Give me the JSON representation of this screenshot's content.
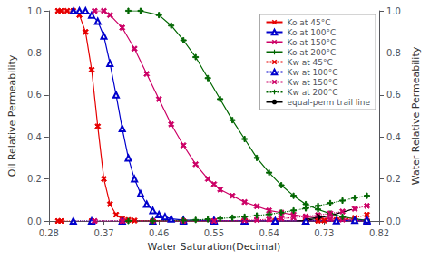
{
  "chart_data": {
    "type": "line",
    "xlabel": "Water Saturation(Decimal)",
    "ylabel": "Oil Relative Permeability",
    "y2label": "Water Relative Permeability",
    "xlim": [
      0.28,
      0.82
    ],
    "ylim": [
      0.0,
      1.0
    ],
    "y2lim": [
      0.0,
      1.0
    ],
    "xticks": [
      0.28,
      0.37,
      0.46,
      0.55,
      0.64,
      0.73,
      0.82
    ],
    "yticks": [
      {
        "value": 0.0,
        "label": "0.0"
      },
      0.2,
      0.4,
      0.6,
      0.8,
      {
        "value": 1.0,
        "label": "1.0"
      }
    ],
    "y2ticks": [
      {
        "value": 0.0,
        "label": "0.0"
      },
      0.2,
      0.4,
      0.6,
      0.8,
      {
        "value": 1.0,
        "label": "1.0"
      }
    ],
    "grid": false,
    "legend": "upper right",
    "series": [
      {
        "name": "Ko at 45°C",
        "color": "#e60000",
        "marker": "x",
        "line_style": "solid",
        "x": [
          0.295,
          0.3,
          0.31,
          0.32,
          0.33,
          0.34,
          0.35,
          0.36,
          0.37,
          0.38,
          0.39,
          0.4,
          0.41,
          0.42,
          0.5,
          0.6,
          0.7,
          0.8
        ],
        "values": [
          1.0,
          1.0,
          1.0,
          1.0,
          0.98,
          0.9,
          0.72,
          0.45,
          0.2,
          0.08,
          0.03,
          0.01,
          0.005,
          0.002,
          0.0,
          0.0,
          0.0,
          0.0
        ]
      },
      {
        "name": "Ko at 100°C",
        "color": "#0000cc",
        "marker": "triangle",
        "line_style": "solid",
        "x": [
          0.32,
          0.33,
          0.34,
          0.35,
          0.36,
          0.37,
          0.38,
          0.39,
          0.4,
          0.41,
          0.42,
          0.43,
          0.44,
          0.45,
          0.46,
          0.47,
          0.48,
          0.5,
          0.55,
          0.6,
          0.65,
          0.7,
          0.8
        ],
        "values": [
          1.0,
          1.0,
          1.0,
          0.98,
          0.95,
          0.88,
          0.75,
          0.6,
          0.44,
          0.3,
          0.2,
          0.13,
          0.08,
          0.05,
          0.03,
          0.02,
          0.01,
          0.005,
          0.002,
          0.001,
          0.0,
          0.0,
          0.0
        ]
      },
      {
        "name": "Ko at 150°C",
        "color": "#cc0066",
        "marker": "x",
        "line_style": "solid",
        "x": [
          0.355,
          0.37,
          0.38,
          0.4,
          0.42,
          0.44,
          0.46,
          0.48,
          0.5,
          0.52,
          0.54,
          0.55,
          0.56,
          0.58,
          0.6,
          0.62,
          0.64,
          0.66,
          0.68,
          0.7,
          0.72,
          0.74,
          0.76,
          0.78,
          0.8
        ],
        "values": [
          1.0,
          1.0,
          0.98,
          0.92,
          0.82,
          0.7,
          0.58,
          0.46,
          0.36,
          0.27,
          0.2,
          0.175,
          0.15,
          0.12,
          0.09,
          0.07,
          0.05,
          0.04,
          0.03,
          0.02,
          0.015,
          0.01,
          0.007,
          0.004,
          0.001
        ]
      },
      {
        "name": "Ko at 200°C",
        "color": "#006600",
        "marker": "plus",
        "line_style": "solid",
        "x": [
          0.41,
          0.43,
          0.46,
          0.48,
          0.5,
          0.52,
          0.54,
          0.56,
          0.58,
          0.6,
          0.62,
          0.64,
          0.66,
          0.68,
          0.7,
          0.72,
          0.74,
          0.76,
          0.78,
          0.8
        ],
        "values": [
          1.0,
          1.0,
          0.98,
          0.93,
          0.86,
          0.78,
          0.68,
          0.58,
          0.48,
          0.39,
          0.3,
          0.23,
          0.17,
          0.12,
          0.08,
          0.055,
          0.035,
          0.02,
          0.01,
          0.003
        ]
      },
      {
        "name": "Kw at 45°C",
        "color": "#e60000",
        "marker": "x",
        "line_style": "dotted",
        "axis": "y2",
        "x": [
          0.295,
          0.3,
          0.35,
          0.4,
          0.45,
          0.5,
          0.55,
          0.6,
          0.65,
          0.7,
          0.72,
          0.73,
          0.75,
          0.78,
          0.8
        ],
        "values": [
          0.0,
          0.0,
          0.0,
          0.0,
          0.0,
          0.0,
          0.0,
          0.0,
          0.0,
          0.0,
          0.001,
          0.002,
          0.005,
          0.015,
          0.03
        ]
      },
      {
        "name": "Kw at 100°C",
        "color": "#0000cc",
        "marker": "triangle",
        "line_style": "dotted",
        "axis": "y2",
        "x": [
          0.32,
          0.35,
          0.4,
          0.45,
          0.5,
          0.55,
          0.6,
          0.65,
          0.7,
          0.75,
          0.78,
          0.8
        ],
        "values": [
          0.0,
          0.0,
          0.0,
          0.0,
          0.0,
          0.0,
          0.0,
          0.0,
          0.0,
          0.001,
          0.003,
          0.005
        ]
      },
      {
        "name": "Kw at 150°C",
        "color": "#cc0066",
        "marker": "x",
        "line_style": "dotted",
        "axis": "y2",
        "x": [
          0.355,
          0.4,
          0.45,
          0.5,
          0.55,
          0.6,
          0.62,
          0.64,
          0.66,
          0.68,
          0.7,
          0.72,
          0.74,
          0.76,
          0.78,
          0.8
        ],
        "values": [
          0.0,
          0.0,
          0.0,
          0.0,
          0.0,
          0.003,
          0.005,
          0.008,
          0.012,
          0.016,
          0.022,
          0.028,
          0.036,
          0.045,
          0.058,
          0.072
        ]
      },
      {
        "name": "Kw at 200°C",
        "color": "#006600",
        "marker": "plus",
        "line_style": "dotted",
        "axis": "y2",
        "x": [
          0.41,
          0.45,
          0.5,
          0.52,
          0.54,
          0.56,
          0.58,
          0.6,
          0.62,
          0.64,
          0.66,
          0.68,
          0.7,
          0.72,
          0.74,
          0.76,
          0.78,
          0.8
        ],
        "values": [
          0.0,
          0.0,
          0.003,
          0.005,
          0.008,
          0.012,
          0.016,
          0.02,
          0.026,
          0.032,
          0.04,
          0.05,
          0.06,
          0.072,
          0.085,
          0.097,
          0.11,
          0.12
        ]
      },
      {
        "name": "equal-perm trail line",
        "color": "#000000",
        "line_style": "solid",
        "x": [
          0.685,
          0.695,
          0.705,
          0.715,
          0.725,
          0.735,
          0.745,
          0.755,
          0.765,
          0.775
        ],
        "values": [
          0.0,
          0.002,
          0.005,
          0.01,
          0.016,
          0.023,
          0.03,
          0.038,
          0.046,
          0.055
        ]
      }
    ],
    "arrow": {
      "from": [
        0.7,
        0.008
      ],
      "to": [
        0.728,
        0.022
      ]
    }
  }
}
